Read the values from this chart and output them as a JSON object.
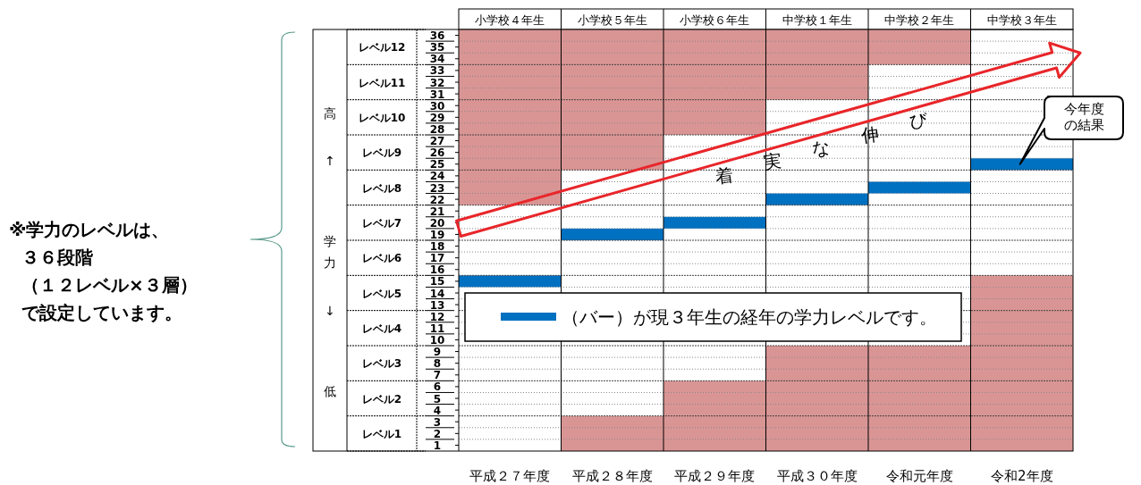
{
  "chart_data": {
    "type": "bar",
    "categories": [
      "小学校４年生",
      "小学校５年生",
      "小学校６年生",
      "中学校１年生",
      "中学校２年生",
      "中学校３年生"
    ],
    "series": [
      {
        "color": "#d99594",
        "base": [
          21.5,
          24.5,
          27.5,
          30.5,
          33.5,
          null
        ],
        "values": [
          15,
          12,
          9,
          6,
          3,
          null
        ]
      },
      {
        "color": "#d99594",
        "base": [
          null,
          0.5,
          0.5,
          0.5,
          0.5,
          0.5
        ],
        "values": [
          null,
          3,
          6,
          9,
          9,
          15
        ]
      },
      {
        "name": "（バー）が現３年生の経年の学力レベルです。",
        "color": "#0070c0",
        "base": [
          14.5,
          18.5,
          19.5,
          21.5,
          22.5,
          24.5
        ],
        "values": [
          1,
          1,
          1,
          1,
          1,
          1
        ]
      }
    ],
    "ylim": [
      0.5,
      36.5
    ],
    "yticks": [
      1,
      2,
      3,
      4,
      5,
      6,
      7,
      8,
      9,
      10,
      11,
      12,
      13,
      14,
      15,
      16,
      17,
      18,
      19,
      20,
      21,
      22,
      23,
      24,
      25,
      26,
      27,
      28,
      29,
      30,
      31,
      32,
      33,
      34,
      35,
      36
    ],
    "grid": "y",
    "legend": "bottom",
    "annotations": [
      "※学力のレベルは、",
      "３６段階",
      "（１２レベル×３層）",
      "で設定しています。",
      "着実な伸び",
      "今年度の結果",
      "高 ↑ 学力 ↓ 低",
      "平成２７年度",
      "平成２８年度",
      "平成２９年度",
      "平成３０年度",
      "令和元年度",
      "令和2年度",
      "レベル1",
      "レベル2",
      "レベル3",
      "レベル4",
      "レベル5",
      "レベル6",
      "レベル7",
      "レベル8",
      "レベル9",
      "レベル10",
      "レベル11",
      "レベル12"
    ]
  }
}
